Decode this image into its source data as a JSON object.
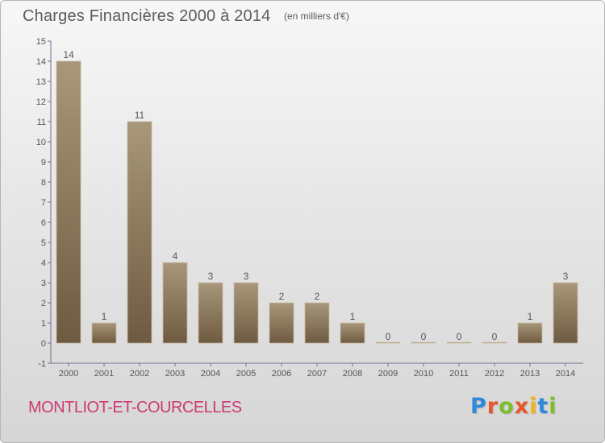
{
  "chart_data": {
    "type": "bar",
    "title": "Charges Financières 2000 à 2014",
    "subtitle": "(en milliers d'€)",
    "categories": [
      "2000",
      "2001",
      "2002",
      "2003",
      "2004",
      "2005",
      "2006",
      "2007",
      "2008",
      "2009",
      "2010",
      "2011",
      "2012",
      "2013",
      "2014"
    ],
    "values": [
      14,
      1,
      11,
      4,
      3,
      3,
      2,
      2,
      1,
      0,
      0,
      0,
      0,
      1,
      3
    ],
    "ylim": [
      -1,
      15
    ],
    "yticks": [
      -1,
      0,
      1,
      2,
      3,
      4,
      5,
      6,
      7,
      8,
      9,
      10,
      11,
      12,
      13,
      14,
      15
    ],
    "grid": false,
    "bar_color_top": "#a8977a",
    "bar_color_bottom": "#6e5a40"
  },
  "footer": {
    "commune": "MONTLIOT-ET-COURCELLES",
    "logo_letters": [
      {
        "ch": "P",
        "color": "#2e8ad8"
      },
      {
        "ch": "r",
        "color": "#e8562a"
      },
      {
        "ch": "o",
        "color": "#7cbf2a"
      },
      {
        "ch": "x",
        "color": "#e8562a"
      },
      {
        "ch": "i",
        "color": "#f2b414"
      },
      {
        "ch": "t",
        "color": "#2e8ad8"
      },
      {
        "ch": "i",
        "color": "#7cbf2a"
      }
    ]
  },
  "colors": {
    "commune_text": "#cc3a72",
    "axis": "#7a6a8a",
    "text": "#555555"
  }
}
